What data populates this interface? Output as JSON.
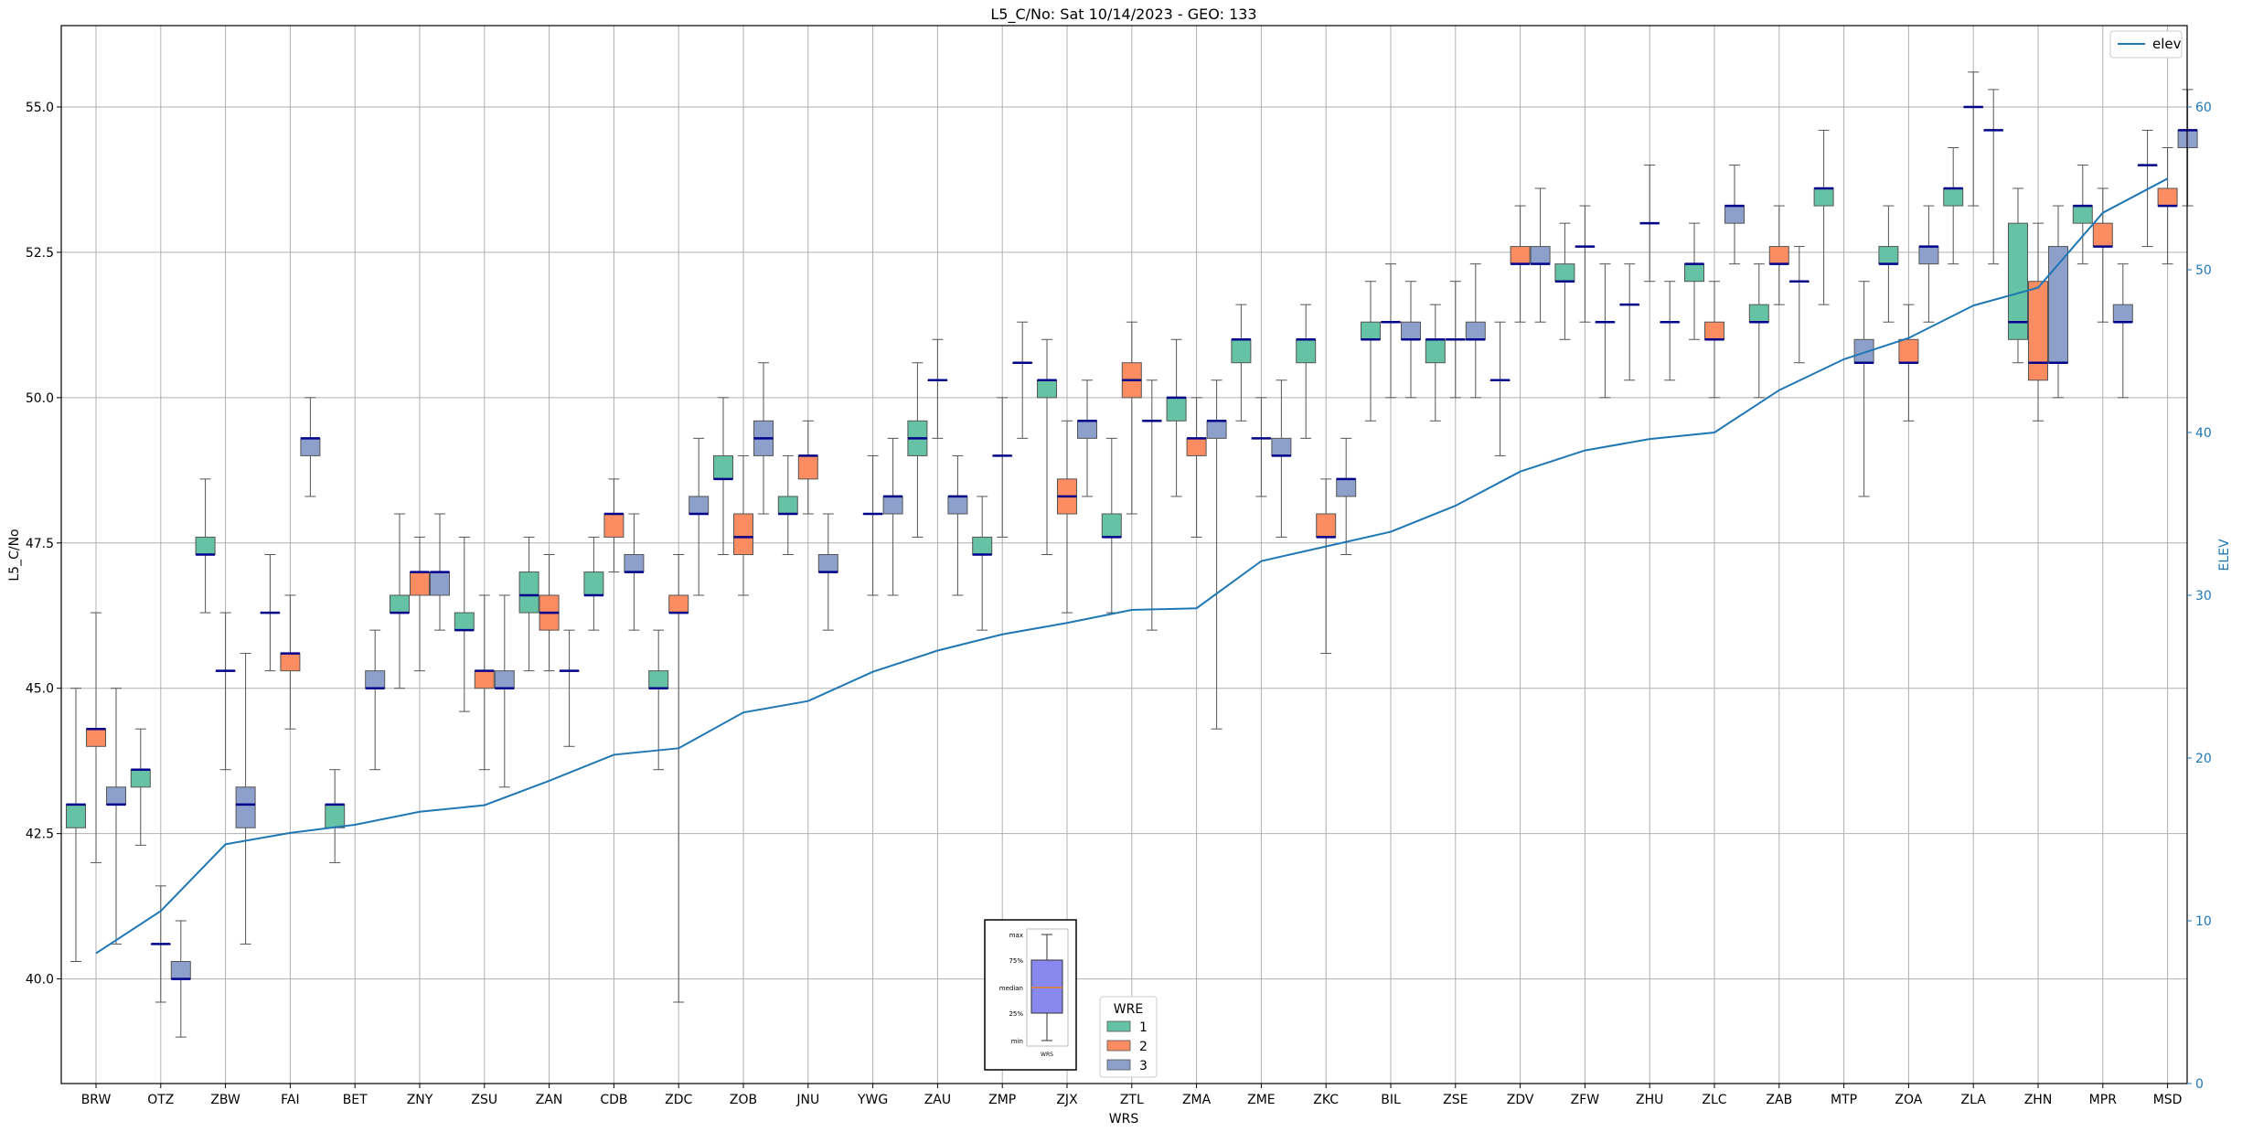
{
  "chart_data": {
    "type": "box",
    "title": "L5_C/No: Sat 10/14/2023 - GEO: 133",
    "xlabel": "WRS",
    "ylabel": "L5_C/No",
    "y2label": "ELEV",
    "ylim": [
      38.2,
      56.4
    ],
    "y2lim": [
      0,
      65
    ],
    "yticks": [
      "40.0",
      "42.5",
      "45.0",
      "47.5",
      "50.0",
      "52.5",
      "55.0"
    ],
    "y2ticks": [
      "0",
      "10",
      "20",
      "30",
      "40",
      "50",
      "60"
    ],
    "grid": true,
    "colors": {
      "wre1": "#66c2a5",
      "wre2": "#fc8d62",
      "wre3": "#8da0cb",
      "median": "#00008b",
      "whisker": "#555555",
      "elev": "#1f77b4",
      "grid": "#b0b0b0"
    },
    "categories": [
      "BRW",
      "OTZ",
      "ZBW",
      "FAI",
      "BET",
      "ZNY",
      "ZSU",
      "ZAN",
      "CDB",
      "ZDC",
      "ZOB",
      "JNU",
      "YWG",
      "ZAU",
      "ZMP",
      "ZJX",
      "ZTL",
      "ZMA",
      "ZME",
      "ZKC",
      "BIL",
      "ZSE",
      "ZDV",
      "ZFW",
      "ZHU",
      "ZLC",
      "ZAB",
      "MTP",
      "ZOA",
      "ZLA",
      "ZHN",
      "MPR",
      "MSD"
    ],
    "boxes": [
      {
        "station": "BRW",
        "wre": 1,
        "min": 40.3,
        "q1": 42.6,
        "median": 43.0,
        "q3": 43.0,
        "max": 45.0
      },
      {
        "station": "BRW",
        "wre": 2,
        "min": 42.0,
        "q1": 44.0,
        "median": 44.3,
        "q3": 44.3,
        "max": 46.3
      },
      {
        "station": "BRW",
        "wre": 3,
        "min": 40.6,
        "q1": 43.0,
        "median": 43.0,
        "q3": 43.3,
        "max": 45.0
      },
      {
        "station": "OTZ",
        "wre": 1,
        "min": 42.3,
        "q1": 43.3,
        "median": 43.6,
        "q3": 43.6,
        "max": 44.3
      },
      {
        "station": "OTZ",
        "wre": 2,
        "min": 39.6,
        "q1": 40.6,
        "median": 40.6,
        "q3": 40.6,
        "max": 41.6
      },
      {
        "station": "OTZ",
        "wre": 3,
        "min": 39.0,
        "q1": 40.0,
        "median": 40.0,
        "q3": 40.3,
        "max": 41.0
      },
      {
        "station": "ZBW",
        "wre": 1,
        "min": 46.3,
        "q1": 47.3,
        "median": 47.3,
        "q3": 47.6,
        "max": 48.6
      },
      {
        "station": "ZBW",
        "wre": 2,
        "min": 43.6,
        "q1": 45.3,
        "median": 45.3,
        "q3": 45.3,
        "max": 46.3
      },
      {
        "station": "ZBW",
        "wre": 3,
        "min": 40.6,
        "q1": 42.6,
        "median": 43.0,
        "q3": 43.3,
        "max": 45.6
      },
      {
        "station": "FAI",
        "wre": 1,
        "min": 45.3,
        "q1": 46.3,
        "median": 46.3,
        "q3": 46.3,
        "max": 47.3
      },
      {
        "station": "FAI",
        "wre": 2,
        "min": 44.3,
        "q1": 45.3,
        "median": 45.6,
        "q3": 45.6,
        "max": 46.6
      },
      {
        "station": "FAI",
        "wre": 3,
        "min": 48.3,
        "q1": 49.0,
        "median": 49.3,
        "q3": 49.3,
        "max": 50.0
      },
      {
        "station": "BET",
        "wre": 1,
        "min": 42.0,
        "q1": 42.6,
        "median": 43.0,
        "q3": 43.0,
        "max": 43.6
      },
      {
        "station": "BET",
        "wre": 3,
        "min": 43.6,
        "q1": 45.0,
        "median": 45.0,
        "q3": 45.3,
        "max": 46.0
      },
      {
        "station": "ZNY",
        "wre": 1,
        "min": 45.0,
        "q1": 46.3,
        "median": 46.3,
        "q3": 46.6,
        "max": 48.0
      },
      {
        "station": "ZNY",
        "wre": 2,
        "min": 45.3,
        "q1": 46.6,
        "median": 47.0,
        "q3": 47.0,
        "max": 47.6
      },
      {
        "station": "ZNY",
        "wre": 3,
        "min": 46.0,
        "q1": 46.6,
        "median": 47.0,
        "q3": 47.0,
        "max": 48.0
      },
      {
        "station": "ZSU",
        "wre": 1,
        "min": 44.6,
        "q1": 46.0,
        "median": 46.0,
        "q3": 46.3,
        "max": 47.6
      },
      {
        "station": "ZSU",
        "wre": 2,
        "min": 43.6,
        "q1": 45.0,
        "median": 45.3,
        "q3": 45.3,
        "max": 46.6
      },
      {
        "station": "ZSU",
        "wre": 3,
        "min": 43.3,
        "q1": 45.0,
        "median": 45.0,
        "q3": 45.3,
        "max": 46.6
      },
      {
        "station": "ZAN",
        "wre": 1,
        "min": 45.3,
        "q1": 46.3,
        "median": 46.6,
        "q3": 47.0,
        "max": 47.6
      },
      {
        "station": "ZAN",
        "wre": 2,
        "min": 45.3,
        "q1": 46.0,
        "median": 46.3,
        "q3": 46.6,
        "max": 47.3
      },
      {
        "station": "ZAN",
        "wre": 3,
        "min": 44.0,
        "q1": 45.3,
        "median": 45.3,
        "q3": 45.3,
        "max": 46.0
      },
      {
        "station": "CDB",
        "wre": 1,
        "min": 46.0,
        "q1": 46.6,
        "median": 46.6,
        "q3": 47.0,
        "max": 47.6
      },
      {
        "station": "CDB",
        "wre": 2,
        "min": 47.0,
        "q1": 47.6,
        "median": 48.0,
        "q3": 48.0,
        "max": 48.6
      },
      {
        "station": "CDB",
        "wre": 3,
        "min": 46.0,
        "q1": 47.0,
        "median": 47.0,
        "q3": 47.3,
        "max": 48.0
      },
      {
        "station": "ZDC",
        "wre": 1,
        "min": 43.6,
        "q1": 45.0,
        "median": 45.0,
        "q3": 45.3,
        "max": 46.0
      },
      {
        "station": "ZDC",
        "wre": 2,
        "min": 39.6,
        "q1": 46.3,
        "median": 46.3,
        "q3": 46.6,
        "max": 47.3
      },
      {
        "station": "ZDC",
        "wre": 3,
        "min": 46.6,
        "q1": 48.0,
        "median": 48.0,
        "q3": 48.3,
        "max": 49.3
      },
      {
        "station": "ZOB",
        "wre": 1,
        "min": 47.3,
        "q1": 48.6,
        "median": 48.6,
        "q3": 49.0,
        "max": 50.0
      },
      {
        "station": "ZOB",
        "wre": 2,
        "min": 46.6,
        "q1": 47.3,
        "median": 47.6,
        "q3": 48.0,
        "max": 49.0
      },
      {
        "station": "ZOB",
        "wre": 3,
        "min": 48.0,
        "q1": 49.0,
        "median": 49.3,
        "q3": 49.6,
        "max": 50.6
      },
      {
        "station": "JNU",
        "wre": 1,
        "min": 47.3,
        "q1": 48.0,
        "median": 48.0,
        "q3": 48.3,
        "max": 49.0
      },
      {
        "station": "JNU",
        "wre": 2,
        "min": 48.0,
        "q1": 48.6,
        "median": 49.0,
        "q3": 49.0,
        "max": 49.6
      },
      {
        "station": "JNU",
        "wre": 3,
        "min": 46.0,
        "q1": 47.0,
        "median": 47.0,
        "q3": 47.3,
        "max": 48.0
      },
      {
        "station": "YWG",
        "wre": 2,
        "min": 46.6,
        "q1": 48.0,
        "median": 48.0,
        "q3": 48.0,
        "max": 49.0
      },
      {
        "station": "YWG",
        "wre": 3,
        "min": 46.6,
        "q1": 48.0,
        "median": 48.3,
        "q3": 48.3,
        "max": 49.3
      },
      {
        "station": "ZAU",
        "wre": 1,
        "min": 47.6,
        "q1": 49.0,
        "median": 49.3,
        "q3": 49.6,
        "max": 50.6
      },
      {
        "station": "ZAU",
        "wre": 2,
        "min": 49.3,
        "q1": 50.3,
        "median": 50.3,
        "q3": 50.3,
        "max": 51.0
      },
      {
        "station": "ZAU",
        "wre": 3,
        "min": 46.6,
        "q1": 48.0,
        "median": 48.3,
        "q3": 48.3,
        "max": 49.0
      },
      {
        "station": "ZMP",
        "wre": 1,
        "min": 46.0,
        "q1": 47.3,
        "median": 47.3,
        "q3": 47.6,
        "max": 48.3
      },
      {
        "station": "ZMP",
        "wre": 2,
        "min": 47.6,
        "q1": 49.0,
        "median": 49.0,
        "q3": 49.0,
        "max": 50.0
      },
      {
        "station": "ZMP",
        "wre": 3,
        "min": 49.3,
        "q1": 50.6,
        "median": 50.6,
        "q3": 50.6,
        "max": 51.3
      },
      {
        "station": "ZJX",
        "wre": 1,
        "min": 47.3,
        "q1": 50.0,
        "median": 50.3,
        "q3": 50.3,
        "max": 51.0
      },
      {
        "station": "ZJX",
        "wre": 2,
        "min": 46.3,
        "q1": 48.0,
        "median": 48.3,
        "q3": 48.6,
        "max": 49.6
      },
      {
        "station": "ZJX",
        "wre": 3,
        "min": 48.3,
        "q1": 49.3,
        "median": 49.6,
        "q3": 49.6,
        "max": 50.3
      },
      {
        "station": "ZTL",
        "wre": 1,
        "min": 46.3,
        "q1": 47.6,
        "median": 47.6,
        "q3": 48.0,
        "max": 49.3
      },
      {
        "station": "ZTL",
        "wre": 2,
        "min": 48.0,
        "q1": 50.0,
        "median": 50.3,
        "q3": 50.6,
        "max": 51.3
      },
      {
        "station": "ZTL",
        "wre": 3,
        "min": 46.0,
        "q1": 49.6,
        "median": 49.6,
        "q3": 49.6,
        "max": 50.3
      },
      {
        "station": "ZMA",
        "wre": 1,
        "min": 48.3,
        "q1": 49.6,
        "median": 50.0,
        "q3": 50.0,
        "max": 51.0
      },
      {
        "station": "ZMA",
        "wre": 2,
        "min": 47.6,
        "q1": 49.0,
        "median": 49.3,
        "q3": 49.3,
        "max": 50.0
      },
      {
        "station": "ZMA",
        "wre": 3,
        "min": 44.3,
        "q1": 49.3,
        "median": 49.6,
        "q3": 49.6,
        "max": 50.3
      },
      {
        "station": "ZME",
        "wre": 1,
        "min": 49.6,
        "q1": 50.6,
        "median": 51.0,
        "q3": 51.0,
        "max": 51.6
      },
      {
        "station": "ZME",
        "wre": 2,
        "min": 48.3,
        "q1": 49.3,
        "median": 49.3,
        "q3": 49.3,
        "max": 50.0
      },
      {
        "station": "ZME",
        "wre": 3,
        "min": 47.6,
        "q1": 49.0,
        "median": 49.0,
        "q3": 49.3,
        "max": 50.3
      },
      {
        "station": "ZKC",
        "wre": 1,
        "min": 49.3,
        "q1": 50.6,
        "median": 51.0,
        "q3": 51.0,
        "max": 51.6
      },
      {
        "station": "ZKC",
        "wre": 2,
        "min": 45.6,
        "q1": 47.6,
        "median": 47.6,
        "q3": 48.0,
        "max": 48.6
      },
      {
        "station": "ZKC",
        "wre": 3,
        "min": 47.3,
        "q1": 48.3,
        "median": 48.6,
        "q3": 48.6,
        "max": 49.3
      },
      {
        "station": "BIL",
        "wre": 1,
        "min": 49.6,
        "q1": 51.0,
        "median": 51.0,
        "q3": 51.3,
        "max": 52.0
      },
      {
        "station": "BIL",
        "wre": 2,
        "min": 50.0,
        "q1": 51.3,
        "median": 51.3,
        "q3": 51.3,
        "max": 52.3
      },
      {
        "station": "BIL",
        "wre": 3,
        "min": 50.0,
        "q1": 51.0,
        "median": 51.0,
        "q3": 51.3,
        "max": 52.0
      },
      {
        "station": "ZSE",
        "wre": 1,
        "min": 49.6,
        "q1": 50.6,
        "median": 51.0,
        "q3": 51.0,
        "max": 51.6
      },
      {
        "station": "ZSE",
        "wre": 2,
        "min": 50.0,
        "q1": 51.0,
        "median": 51.0,
        "q3": 51.0,
        "max": 52.0
      },
      {
        "station": "ZSE",
        "wre": 3,
        "min": 50.0,
        "q1": 51.0,
        "median": 51.0,
        "q3": 51.3,
        "max": 52.3
      },
      {
        "station": "ZDV",
        "wre": 1,
        "min": 49.0,
        "q1": 50.3,
        "median": 50.3,
        "q3": 50.3,
        "max": 51.3
      },
      {
        "station": "ZDV",
        "wre": 2,
        "min": 51.3,
        "q1": 52.3,
        "median": 52.3,
        "q3": 52.6,
        "max": 53.3
      },
      {
        "station": "ZDV",
        "wre": 3,
        "min": 51.3,
        "q1": 52.3,
        "median": 52.3,
        "q3": 52.6,
        "max": 53.6
      },
      {
        "station": "ZFW",
        "wre": 1,
        "min": 51.0,
        "q1": 52.0,
        "median": 52.0,
        "q3": 52.3,
        "max": 53.0
      },
      {
        "station": "ZFW",
        "wre": 2,
        "min": 51.3,
        "q1": 52.6,
        "median": 52.6,
        "q3": 52.6,
        "max": 53.3
      },
      {
        "station": "ZFW",
        "wre": 3,
        "min": 50.0,
        "q1": 51.3,
        "median": 51.3,
        "q3": 51.3,
        "max": 52.3
      },
      {
        "station": "ZHU",
        "wre": 1,
        "min": 50.3,
        "q1": 51.6,
        "median": 51.6,
        "q3": 51.6,
        "max": 52.3
      },
      {
        "station": "ZHU",
        "wre": 2,
        "min": 52.0,
        "q1": 53.0,
        "median": 53.0,
        "q3": 53.0,
        "max": 54.0
      },
      {
        "station": "ZHU",
        "wre": 3,
        "min": 50.3,
        "q1": 51.3,
        "median": 51.3,
        "q3": 51.3,
        "max": 52.0
      },
      {
        "station": "ZLC",
        "wre": 1,
        "min": 51.0,
        "q1": 52.0,
        "median": 52.3,
        "q3": 52.3,
        "max": 53.0
      },
      {
        "station": "ZLC",
        "wre": 2,
        "min": 50.0,
        "q1": 51.0,
        "median": 51.0,
        "q3": 51.3,
        "max": 52.0
      },
      {
        "station": "ZLC",
        "wre": 3,
        "min": 52.3,
        "q1": 53.0,
        "median": 53.3,
        "q3": 53.3,
        "max": 54.0
      },
      {
        "station": "ZAB",
        "wre": 1,
        "min": 50.0,
        "q1": 51.3,
        "median": 51.3,
        "q3": 51.6,
        "max": 52.3
      },
      {
        "station": "ZAB",
        "wre": 2,
        "min": 51.6,
        "q1": 52.3,
        "median": 52.3,
        "q3": 52.6,
        "max": 53.3
      },
      {
        "station": "ZAB",
        "wre": 3,
        "min": 50.6,
        "q1": 52.0,
        "median": 52.0,
        "q3": 52.0,
        "max": 52.6
      },
      {
        "station": "MTP",
        "wre": 1,
        "min": 51.6,
        "q1": 53.3,
        "median": 53.6,
        "q3": 53.6,
        "max": 54.6
      },
      {
        "station": "MTP",
        "wre": 3,
        "min": 48.3,
        "q1": 50.6,
        "median": 50.6,
        "q3": 51.0,
        "max": 52.0
      },
      {
        "station": "ZOA",
        "wre": 1,
        "min": 51.3,
        "q1": 52.3,
        "median": 52.3,
        "q3": 52.6,
        "max": 53.3
      },
      {
        "station": "ZOA",
        "wre": 2,
        "min": 49.6,
        "q1": 50.6,
        "median": 50.6,
        "q3": 51.0,
        "max": 51.6
      },
      {
        "station": "ZOA",
        "wre": 3,
        "min": 51.3,
        "q1": 52.3,
        "median": 52.6,
        "q3": 52.6,
        "max": 53.3
      },
      {
        "station": "ZLA",
        "wre": 1,
        "min": 52.3,
        "q1": 53.3,
        "median": 53.6,
        "q3": 53.6,
        "max": 54.3
      },
      {
        "station": "ZLA",
        "wre": 2,
        "min": 53.3,
        "q1": 55.0,
        "median": 55.0,
        "q3": 55.0,
        "max": 55.6
      },
      {
        "station": "ZLA",
        "wre": 3,
        "min": 52.3,
        "q1": 54.6,
        "median": 54.6,
        "q3": 54.6,
        "max": 55.3
      },
      {
        "station": "ZHN",
        "wre": 1,
        "min": 50.6,
        "q1": 51.0,
        "median": 51.3,
        "q3": 53.0,
        "max": 53.6
      },
      {
        "station": "ZHN",
        "wre": 2,
        "min": 49.6,
        "q1": 50.3,
        "median": 50.6,
        "q3": 52.0,
        "max": 53.0
      },
      {
        "station": "ZHN",
        "wre": 3,
        "min": 50.0,
        "q1": 50.6,
        "median": 50.6,
        "q3": 52.6,
        "max": 53.3
      },
      {
        "station": "MPR",
        "wre": 1,
        "min": 52.3,
        "q1": 53.0,
        "median": 53.3,
        "q3": 53.3,
        "max": 54.0
      },
      {
        "station": "MPR",
        "wre": 2,
        "min": 51.3,
        "q1": 52.6,
        "median": 52.6,
        "q3": 53.0,
        "max": 53.6
      },
      {
        "station": "MPR",
        "wre": 3,
        "min": 50.0,
        "q1": 51.3,
        "median": 51.3,
        "q3": 51.6,
        "max": 52.3
      },
      {
        "station": "MSD",
        "wre": 1,
        "min": 52.6,
        "q1": 54.0,
        "median": 54.0,
        "q3": 54.0,
        "max": 54.6
      },
      {
        "station": "MSD",
        "wre": 2,
        "min": 52.3,
        "q1": 53.3,
        "median": 53.3,
        "q3": 53.6,
        "max": 54.3
      },
      {
        "station": "MSD",
        "wre": 3,
        "min": 53.3,
        "q1": 54.3,
        "median": 54.6,
        "q3": 54.6,
        "max": 55.3
      }
    ],
    "elev_series": {
      "name": "elev",
      "values": [
        8.0,
        10.6,
        14.7,
        15.4,
        15.9,
        16.7,
        17.1,
        18.6,
        20.2,
        20.6,
        22.8,
        23.5,
        25.3,
        26.6,
        27.6,
        28.3,
        29.1,
        29.2,
        32.1,
        33.0,
        33.9,
        35.5,
        37.6,
        38.9,
        39.6,
        40.0,
        42.6,
        44.5,
        45.8,
        47.8,
        48.9,
        53.5,
        55.6
      ]
    },
    "legends": {
      "elev_label": "elev",
      "wre_title": "WRE",
      "wre_labels": [
        "1",
        "2",
        "3"
      ]
    },
    "key_box": {
      "labels": [
        "max",
        "75%",
        "median",
        "25%",
        "min"
      ],
      "xlabel": "WRS"
    }
  }
}
